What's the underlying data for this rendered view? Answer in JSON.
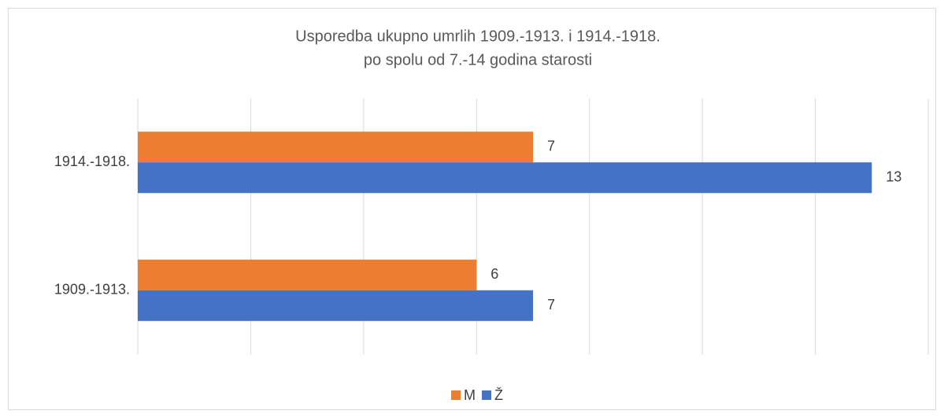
{
  "chart_data": {
    "type": "barh",
    "title": [
      "Usporedba ukupno umrlih 1909.-1913. i 1914.-1918.",
      "po spolu od 7.-14 godina starosti"
    ],
    "categories": [
      "1909.-1913.",
      "1914.-1918."
    ],
    "series": [
      {
        "name": "M",
        "color": "#ed7d31",
        "values": [
          6,
          7
        ]
      },
      {
        "name": "Ž",
        "color": "#4472c4",
        "values": [
          7,
          13
        ]
      }
    ],
    "xlim": [
      0,
      14
    ],
    "xticks": [
      0,
      2,
      4,
      6,
      8,
      10,
      12,
      14
    ],
    "grid": true,
    "legend": "bottom"
  }
}
